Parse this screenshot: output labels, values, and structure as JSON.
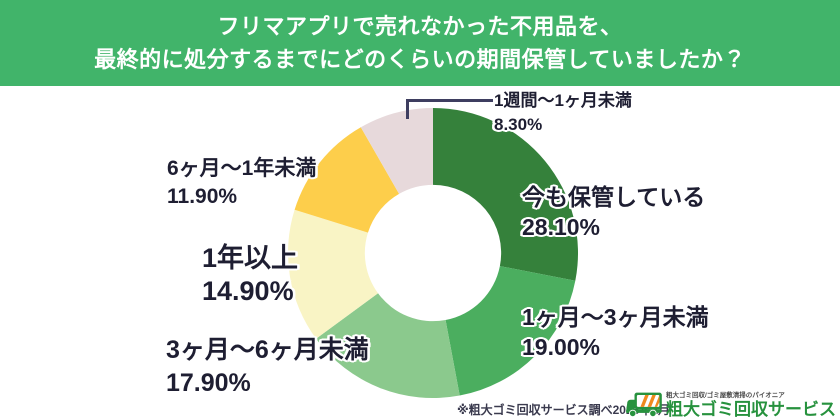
{
  "header": {
    "title_line1": "フリマアプリで売れなかった不用品を、",
    "title_line2": "最終的に処分するまでにどのくらいの期間保管していましたか？",
    "bg_color": "#41B46A",
    "text_color": "#FFFFFF"
  },
  "chart_data": {
    "type": "pie",
    "variant": "donut",
    "title": "フリマアプリで売れなかった不用品を、最終的に処分するまでにどのくらいの期間保管していましたか？",
    "unit": "%",
    "direction": "clockwise",
    "start_angle_deg": 0,
    "inner_radius_ratio": 0.47,
    "legend_position": "around-chart",
    "segments": [
      {
        "label": "今も保管している",
        "value": 28.1,
        "display_value": "28.10%",
        "color": "#35813B"
      },
      {
        "label": "1ヶ月～3ヶ月未満",
        "value": 19.0,
        "display_value": "19.00%",
        "color": "#4BAE5F"
      },
      {
        "label": "3ヶ月～6ヶ月未満",
        "value": 17.9,
        "display_value": "17.90%",
        "color": "#8BC98D"
      },
      {
        "label": "1年以上",
        "value": 14.9,
        "display_value": "14.90%",
        "color": "#F9F4C5"
      },
      {
        "label": "6ヶ月～1年未満",
        "value": 11.9,
        "display_value": "11.90%",
        "color": "#FDCE4B"
      },
      {
        "label": "1週間～1ヶ月未満",
        "value": 8.3,
        "display_value": "8.30%",
        "color": "#E7D9DB"
      }
    ],
    "callout_color": "#3E3E60"
  },
  "footer": {
    "source_note": "※粗大ゴミ回収サービス調べ2026年2月"
  },
  "logo": {
    "tagline": "粗大ゴミ回収/ゴミ屋敷清掃のパイオニア",
    "name": "粗大ゴミ回収サービス",
    "brand_green": "#27923E",
    "brand_orange": "#F08A1D"
  }
}
